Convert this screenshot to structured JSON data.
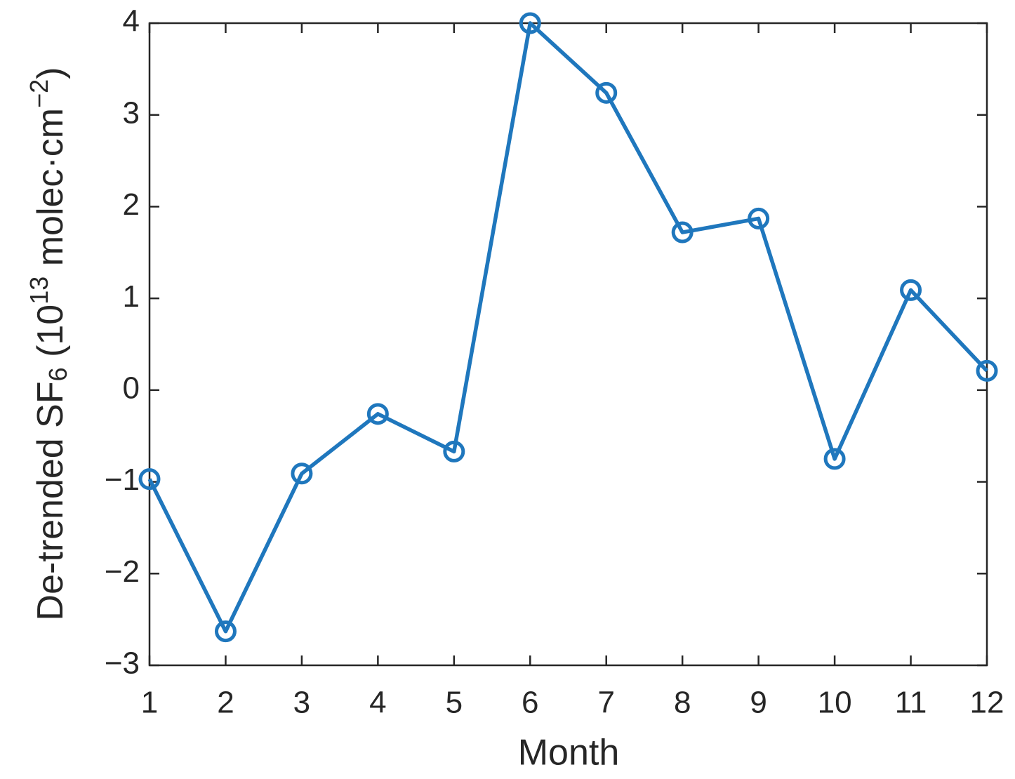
{
  "chart_data": {
    "type": "line",
    "xlabel": "Month",
    "ylabel_parts": [
      {
        "text": "De-trended SF",
        "shift": "normal"
      },
      {
        "text": "6",
        "shift": "sub"
      },
      {
        "text": " (10",
        "shift": "normal"
      },
      {
        "text": "13",
        "shift": "super"
      },
      {
        "text": " molec·cm",
        "shift": "normal"
      },
      {
        "text": "−2",
        "shift": "super"
      },
      {
        "text": ")",
        "shift": "normal"
      }
    ],
    "x": [
      1,
      2,
      3,
      4,
      5,
      6,
      7,
      8,
      9,
      10,
      11,
      12
    ],
    "series": [
      {
        "color": "#1f77bd",
        "values": [
          -0.97,
          -2.63,
          -0.91,
          -0.26,
          -0.67,
          4.0,
          3.24,
          1.72,
          1.87,
          -0.75,
          1.09,
          0.21
        ]
      }
    ],
    "xlim": [
      1,
      12
    ],
    "xticks": [
      1,
      2,
      3,
      4,
      5,
      6,
      7,
      8,
      9,
      10,
      11,
      12
    ],
    "ylim": [
      -3,
      4
    ],
    "yticks": [
      {
        "value": -3,
        "label": "−3"
      },
      {
        "value": -2,
        "label": "−2"
      },
      {
        "value": -1,
        "label": "−1"
      },
      0,
      1,
      2,
      3,
      4
    ],
    "markers": "circle"
  }
}
